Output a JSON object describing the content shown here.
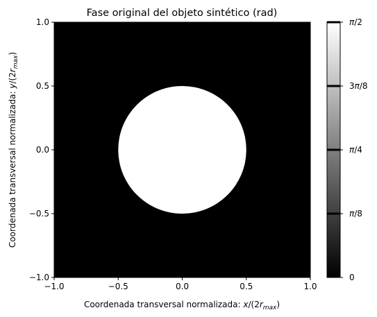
{
  "chart_data": {
    "type": "heatmap",
    "title": "Fase original del objeto sintético (rad)",
    "xlabel": {
      "prefix": "Coordenada transversal normalizada: ",
      "var": "x",
      "mid": "/(2",
      "sub_base": "r",
      "sub": "max",
      "suffix": ")"
    },
    "ylabel": {
      "prefix": "Coordenada transversal normalizada: ",
      "var": "y",
      "mid": "/(2",
      "sub_base": "r",
      "sub": "max",
      "suffix": ")"
    },
    "xlim": [
      -1.0,
      1.0
    ],
    "ylim": [
      -1.0,
      1.0
    ],
    "xticks": [
      -1.0,
      -0.5,
      0.0,
      0.5,
      1.0
    ],
    "xtick_labels": [
      "−1.0",
      "−0.5",
      "0.0",
      "0.5",
      "1.0"
    ],
    "yticks": [
      -1.0,
      -0.5,
      0.0,
      0.5,
      1.0
    ],
    "ytick_labels": [
      "−1.0",
      "−0.5",
      "0.0",
      "0.5",
      "1.0"
    ],
    "grid": false,
    "colormap": "gray",
    "background_value": 0,
    "disk": {
      "center": [
        0.0,
        0.0
      ],
      "radius": 0.5,
      "value": 1.5708
    },
    "colorbar": {
      "min": 0,
      "max": 1.5708,
      "ticks": [
        0,
        0.3927,
        0.7854,
        1.1781,
        1.5708
      ],
      "tick_labels": [
        "0",
        "π/8",
        "π/4",
        "3π/8",
        "π/2"
      ],
      "contour_lines_at": [
        0.3927,
        0.7854,
        1.1781,
        1.5708
      ],
      "placement": "right"
    }
  }
}
